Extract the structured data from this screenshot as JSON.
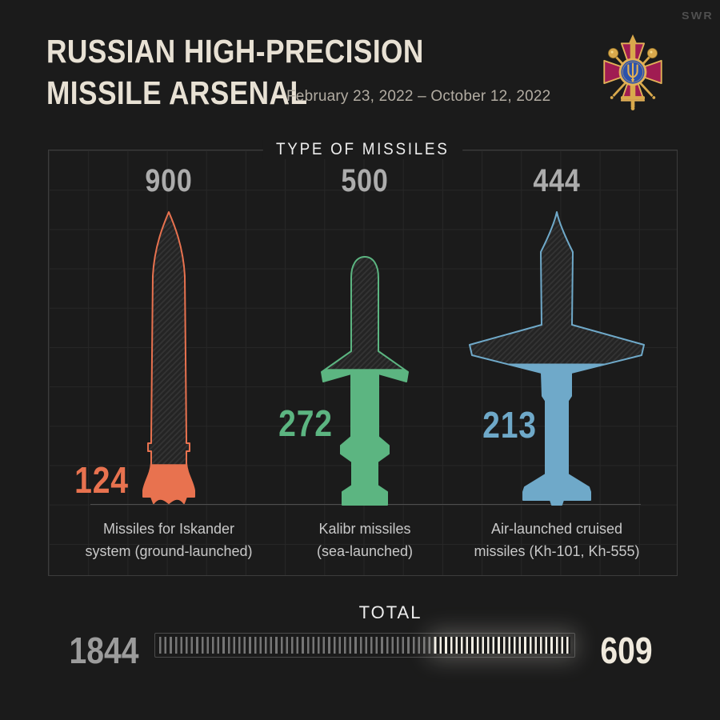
{
  "header": {
    "title_line1": "RUSSIAN HIGH-PRECISION",
    "title_line2": "MISSILE ARSENAL",
    "subtitle": "February 23, 2022 – October 12, 2022",
    "watermark": "SWR",
    "emblem": "emblem-of-ukrainian-armed-forces"
  },
  "chart_data": {
    "type": "pictorial-bar",
    "title": "TYPE OF MISSILES",
    "description": "Each missile silhouette represents the initial stock; the solid-colored bottom portion is the remaining amount.",
    "missiles": [
      {
        "name": "iskander",
        "caption_line1": "Missiles for Iskander",
        "caption_line2": "system (ground-launched)",
        "total": 900,
        "remaining": 124,
        "color": "#E8724F"
      },
      {
        "name": "kalibr",
        "caption_line1": "Kalibr missiles",
        "caption_line2": "(sea-launched)",
        "total": 500,
        "remaining": 272,
        "color": "#5CB581"
      },
      {
        "name": "kh-101-kh-555",
        "caption_line1": "Air-launched cruised",
        "caption_line2": "missiles (Kh-101, Kh-555)",
        "total": 444,
        "remaining": 213,
        "color": "#6FA9C9"
      }
    ],
    "total": {
      "label": "TOTAL",
      "grand_total": 1844,
      "remaining": 609
    },
    "legend_position": "none",
    "grid": true
  },
  "colors": {
    "bg": "#1B1B1B",
    "panel_border": "#3C3C3C",
    "grid_line": "#272727",
    "baseline": "#4E4E4E",
    "title": "#E8E1D4",
    "subtitle": "#B2ACA2",
    "missile_total": "#ACACAC",
    "caption": "#C8C8C8",
    "total_label": "#EDEDED",
    "total_left": "#9C9C9C",
    "total_right": "#EFE9DC",
    "tick_dim": "#757575",
    "tick_bright": "#F2EEE4",
    "watermark": "#4F4F4F"
  }
}
